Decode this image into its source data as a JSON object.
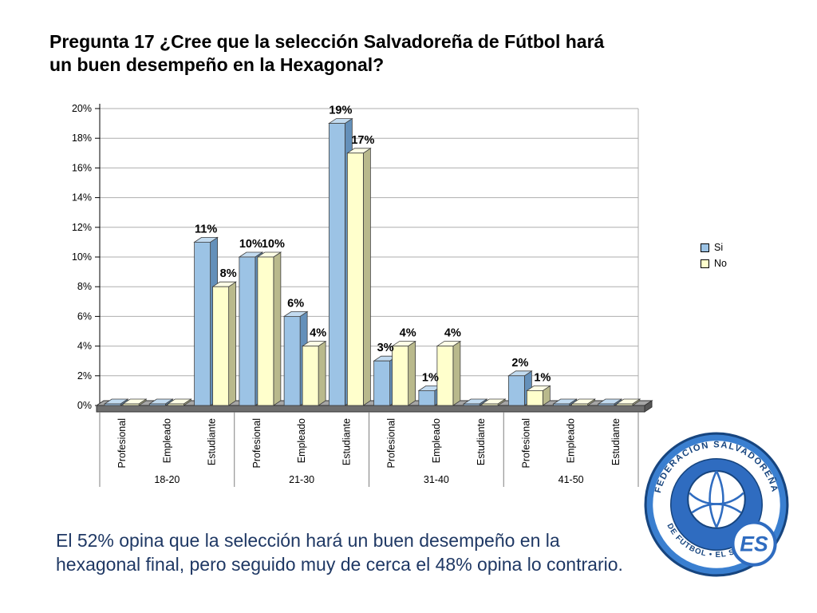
{
  "slide": {
    "title_line1": "Pregunta 17 ¿Cree que la selección Salvadoreña de Fútbol hará",
    "title_line2": "un buen desempeño en la Hexagonal?",
    "footer_line1": "El  52% opina que la selección hará un buen desempeño en la",
    "footer_line2": "hexagonal final, pero seguido muy de cerca el 48% opina lo contrario."
  },
  "chart_data": {
    "type": "bar",
    "title": "Pregunta 17 ¿Cree que la selección Salvadoreña de Fútbol hará un buen desempeño en la Hexagonal?",
    "groups": [
      "18-20",
      "21-30",
      "31-40",
      "41-50"
    ],
    "categories": [
      "Profesional",
      "Empleado",
      "Estudiante"
    ],
    "series": [
      {
        "name": "Si",
        "color": "#9cc3e5",
        "side": "#6490ba",
        "top": "#c2dbf0",
        "values": [
          0,
          0,
          11,
          10,
          6,
          19,
          3,
          1,
          0,
          2,
          0,
          0
        ],
        "labels": [
          "",
          "",
          "11%",
          "10%",
          "6%",
          "19%",
          "3%",
          "1%",
          "",
          "2%",
          "",
          ""
        ]
      },
      {
        "name": "No",
        "color": "#ffffcc",
        "side": "#b9b98c",
        "top": "#ffffe6",
        "values": [
          0,
          0,
          8,
          10,
          4,
          17,
          4,
          4,
          0,
          1,
          0,
          0
        ],
        "labels": [
          "",
          "",
          "8%",
          "10%",
          "4%",
          "17%",
          "4%",
          "4%",
          "",
          "1%",
          "",
          ""
        ]
      }
    ],
    "ylim": [
      0,
      20
    ],
    "ytick_step": 2,
    "ytick_labels": [
      "0%",
      "2%",
      "4%",
      "6%",
      "8%",
      "10%",
      "12%",
      "14%",
      "16%",
      "18%",
      "20%"
    ],
    "legend_position": "right",
    "grid": true
  },
  "logo": {
    "ring_text_top": "FEDERACION SALVADOREÑA",
    "ring_text_bottom": "DE FUTBOL • EL SALVADOR",
    "initials": "ES",
    "colors": {
      "outer": "#3a7fd0",
      "disc": "#2f6cc0",
      "text": "#17457f"
    }
  }
}
